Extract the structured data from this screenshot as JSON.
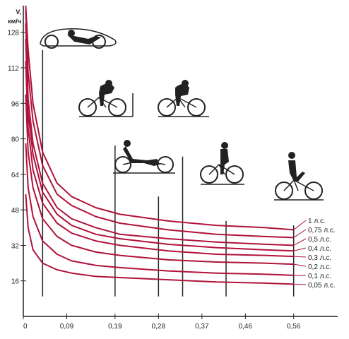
{
  "chart_data": {
    "type": "line",
    "title": "",
    "xlabel": "",
    "ylabel": "V, км/ч",
    "ylabel_parts": [
      "V,",
      "км/ч"
    ],
    "xlim": [
      0,
      0.6
    ],
    "ylim": [
      0,
      140
    ],
    "x_ticks": [
      {
        "value": 0,
        "label": "0"
      },
      {
        "value": 0.09,
        "label": "0,09"
      },
      {
        "value": 0.19,
        "label": "0,19"
      },
      {
        "value": 0.28,
        "label": "0,28"
      },
      {
        "value": 0.37,
        "label": "0,37"
      },
      {
        "value": 0.46,
        "label": "0,46"
      },
      {
        "value": 0.56,
        "label": "0,56"
      }
    ],
    "y_ticks": [
      {
        "value": 16,
        "label": "16"
      },
      {
        "value": 32,
        "label": "32"
      },
      {
        "value": 48,
        "label": "48"
      },
      {
        "value": 64,
        "label": "64"
      },
      {
        "value": 80,
        "label": "80"
      },
      {
        "value": 96,
        "label": "96"
      },
      {
        "value": 112,
        "label": "112"
      },
      {
        "value": 128,
        "label": "128"
      }
    ],
    "series_color": "#b0123a",
    "series": [
      {
        "name": "1 л.с.",
        "x": [
          0.005,
          0.01,
          0.02,
          0.04,
          0.07,
          0.1,
          0.15,
          0.2,
          0.3,
          0.4,
          0.5,
          0.56
        ],
        "values": [
          140,
          120,
          96,
          74,
          60,
          54,
          49,
          46,
          43,
          41,
          40,
          39
        ]
      },
      {
        "name": "0,75 л.с.",
        "x": [
          0.005,
          0.01,
          0.02,
          0.04,
          0.07,
          0.1,
          0.15,
          0.2,
          0.3,
          0.4,
          0.5,
          0.56
        ],
        "values": [
          138,
          110,
          88,
          68,
          55,
          50,
          45,
          42,
          39,
          37,
          36,
          35.5
        ]
      },
      {
        "name": "0,5 л.с.",
        "x": [
          0.005,
          0.01,
          0.02,
          0.04,
          0.07,
          0.1,
          0.15,
          0.2,
          0.3,
          0.4,
          0.5,
          0.56
        ],
        "values": [
          132,
          98,
          78,
          60,
          49,
          44,
          40,
          37,
          35,
          33.5,
          32.5,
          32
        ]
      },
      {
        "name": "0,4 л.с.",
        "x": [
          0.005,
          0.01,
          0.02,
          0.04,
          0.07,
          0.1,
          0.15,
          0.2,
          0.3,
          0.4,
          0.5,
          0.56
        ],
        "values": [
          125,
          92,
          73,
          56,
          46,
          41,
          37,
          35,
          32.5,
          31,
          30,
          29.5
        ]
      },
      {
        "name": "0,3 л.с.",
        "x": [
          0.005,
          0.01,
          0.02,
          0.04,
          0.07,
          0.1,
          0.15,
          0.2,
          0.3,
          0.4,
          0.5,
          0.56
        ],
        "values": [
          115,
          85,
          66,
          51,
          42,
          37.5,
          34,
          32,
          29.5,
          28,
          27.5,
          27
        ]
      },
      {
        "name": "0,2 л.с.",
        "x": [
          0.005,
          0.01,
          0.02,
          0.04,
          0.07,
          0.1,
          0.15,
          0.2,
          0.3,
          0.4,
          0.5,
          0.56
        ],
        "values": [
          100,
          74,
          58,
          44,
          36,
          32,
          29,
          27.5,
          25.5,
          24.5,
          24,
          23.5
        ]
      },
      {
        "name": "0,1 л.с.",
        "x": [
          0.005,
          0.01,
          0.02,
          0.04,
          0.07,
          0.1,
          0.15,
          0.2,
          0.3,
          0.4,
          0.5,
          0.56
        ],
        "values": [
          78,
          58,
          45,
          34,
          28,
          25,
          23,
          22,
          20.5,
          19.5,
          19,
          18.5
        ]
      },
      {
        "name": "0,05 л.с.",
        "x": [
          0.005,
          0.01,
          0.02,
          0.04,
          0.07,
          0.1,
          0.15,
          0.2,
          0.3,
          0.4,
          0.5,
          0.56
        ],
        "values": [
          55,
          40,
          30,
          24,
          21,
          19.5,
          18,
          17.5,
          16.5,
          15.5,
          15,
          14.5
        ]
      }
    ],
    "vehicle_markers": [
      {
        "name": "streamliner-recumbent",
        "x": 0.04,
        "top_value": 120
      },
      {
        "name": "racing-bicycle-with-fairing",
        "x": 0.19,
        "top_value": 77
      },
      {
        "name": "recumbent-bicycle",
        "x": 0.28,
        "top_value": 54
      },
      {
        "name": "racing-bicycle",
        "x": 0.33,
        "top_value": 72
      },
      {
        "name": "touring-bicycle",
        "x": 0.42,
        "top_value": 43
      },
      {
        "name": "city-bicycle",
        "x": 0.56,
        "top_value": 41
      }
    ],
    "grid": false,
    "legend": "right"
  }
}
